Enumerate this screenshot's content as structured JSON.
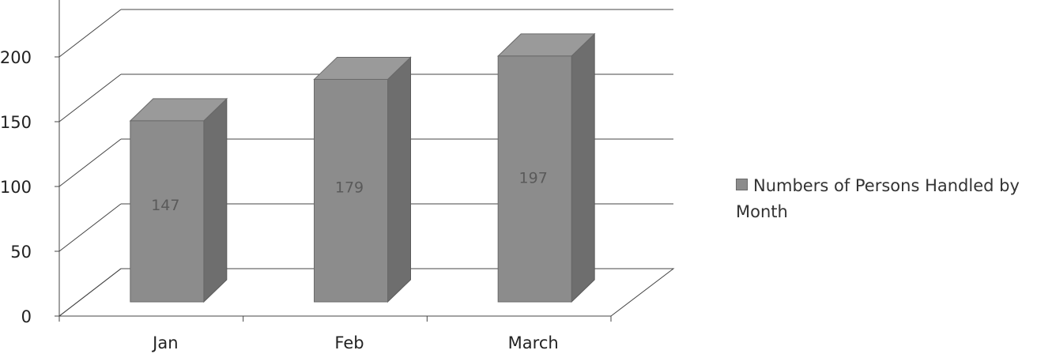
{
  "chart_data": {
    "type": "bar",
    "style": "3d-column",
    "categories": [
      "Jan",
      "Feb",
      "March"
    ],
    "series": [
      {
        "name": "Numbers of Persons Handled by Month",
        "values": [
          147,
          179,
          197
        ],
        "color": "#8c8c8c"
      }
    ],
    "data_labels": [
      "147",
      "179",
      "197"
    ],
    "yticks": [
      "0",
      "50",
      "100",
      "150",
      "200"
    ],
    "ylim": [
      0,
      200
    ],
    "grid": true,
    "legend_position": "right",
    "title": "",
    "xlabel": "",
    "ylabel": ""
  }
}
